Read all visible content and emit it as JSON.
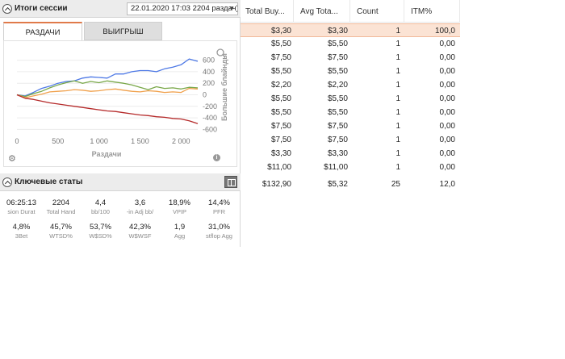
{
  "session": {
    "title": "Итоги сессии",
    "selector_value": "22.01.2020 17:03 2204 раздач)",
    "tabs": [
      {
        "label": "РАЗДАЧИ",
        "active": true
      },
      {
        "label": "ВЫИГРЫШ",
        "active": false
      }
    ]
  },
  "chart_data": {
    "type": "line",
    "title": "",
    "xlabel": "Раздачи",
    "ylabel": "Большие блайнды",
    "x_ticks": [
      0,
      500,
      1000,
      1500,
      2000
    ],
    "x_tick_labels": [
      "0",
      "500",
      "1 000",
      "1 500",
      "2 000"
    ],
    "y_ticks": [
      600,
      400,
      200,
      0,
      -200,
      -400,
      -600
    ],
    "y_tick_labels": [
      "600",
      "400",
      "200",
      "0",
      "-200",
      "-400",
      "-600"
    ],
    "xlim": [
      0,
      2204
    ],
    "ylim": [
      -650,
      650
    ],
    "grid": "horizontal",
    "series": [
      {
        "color": "#4e79e6",
        "x": [
          0,
          100,
          200,
          300,
          400,
          500,
          600,
          700,
          800,
          900,
          1000,
          1100,
          1200,
          1300,
          1400,
          1500,
          1600,
          1700,
          1800,
          1900,
          2000,
          2100,
          2204
        ],
        "y": [
          0,
          -20,
          40,
          110,
          150,
          200,
          230,
          240,
          290,
          310,
          300,
          290,
          360,
          360,
          400,
          420,
          420,
          400,
          450,
          480,
          520,
          620,
          580
        ]
      },
      {
        "color": "#7aa84a",
        "x": [
          0,
          100,
          200,
          300,
          400,
          500,
          600,
          700,
          800,
          900,
          1000,
          1100,
          1200,
          1300,
          1400,
          1500,
          1600,
          1700,
          1800,
          1900,
          2000,
          2100,
          2204
        ],
        "y": [
          0,
          -30,
          20,
          60,
          120,
          170,
          210,
          240,
          200,
          230,
          210,
          240,
          220,
          200,
          170,
          130,
          90,
          140,
          110,
          120,
          100,
          130,
          120
        ]
      },
      {
        "color": "#f0a04b",
        "x": [
          0,
          100,
          200,
          300,
          400,
          500,
          600,
          700,
          800,
          900,
          1000,
          1100,
          1200,
          1300,
          1400,
          1500,
          1600,
          1700,
          1800,
          1900,
          2000,
          2100,
          2204
        ],
        "y": [
          0,
          -50,
          -20,
          10,
          50,
          60,
          70,
          90,
          80,
          60,
          70,
          90,
          100,
          80,
          60,
          50,
          70,
          60,
          40,
          50,
          40,
          110,
          100
        ]
      },
      {
        "color": "#b52a2a",
        "x": [
          0,
          100,
          200,
          300,
          400,
          500,
          600,
          700,
          800,
          900,
          1000,
          1100,
          1200,
          1300,
          1400,
          1500,
          1600,
          1700,
          1800,
          1900,
          2000,
          2100,
          2204
        ],
        "y": [
          0,
          -60,
          -80,
          -110,
          -140,
          -160,
          -180,
          -200,
          -220,
          -240,
          -260,
          -280,
          -290,
          -310,
          -330,
          -350,
          -360,
          -380,
          -390,
          -410,
          -420,
          -450,
          -500
        ]
      }
    ]
  },
  "key_stats": {
    "title": "Ключевые статы",
    "items": [
      {
        "value": "06:25:13",
        "label": "sion Durat"
      },
      {
        "value": "2204",
        "label": "Total Hand"
      },
      {
        "value": "4,4",
        "label": "bb/100"
      },
      {
        "value": "3,6",
        "label": "-in Adj bb/"
      },
      {
        "value": "18,9%",
        "label": "VPIP"
      },
      {
        "value": "14,4%",
        "label": "PFR"
      },
      {
        "value": "4,8%",
        "label": "3Bet"
      },
      {
        "value": "45,7%",
        "label": "WTSD%"
      },
      {
        "value": "53,7%",
        "label": "W$SD%"
      },
      {
        "value": "42,3%",
        "label": "W$WSF"
      },
      {
        "value": "1,9",
        "label": "Agg"
      },
      {
        "value": "31,0%",
        "label": "stflop Agg"
      }
    ]
  },
  "table": {
    "columns": [
      "Total Buy...",
      "Avg Tota...",
      "Count",
      "ITM%"
    ],
    "rows": [
      [
        "$3,30",
        "$3,30",
        "1",
        "100,0"
      ],
      [
        "$5,50",
        "$5,50",
        "1",
        "0,00"
      ],
      [
        "$7,50",
        "$7,50",
        "1",
        "0,00"
      ],
      [
        "$5,50",
        "$5,50",
        "1",
        "0,00"
      ],
      [
        "$2,20",
        "$2,20",
        "1",
        "0,00"
      ],
      [
        "$5,50",
        "$5,50",
        "1",
        "0,00"
      ],
      [
        "$5,50",
        "$5,50",
        "1",
        "0,00"
      ],
      [
        "$7,50",
        "$7,50",
        "1",
        "0,00"
      ],
      [
        "$7,50",
        "$7,50",
        "1",
        "0,00"
      ],
      [
        "$3,30",
        "$3,30",
        "1",
        "0,00"
      ],
      [
        "$11,00",
        "$11,00",
        "1",
        "0,00"
      ]
    ],
    "selected_row": 0,
    "totals": [
      "$132,90",
      "$5,32",
      "25",
      "12,0"
    ]
  }
}
